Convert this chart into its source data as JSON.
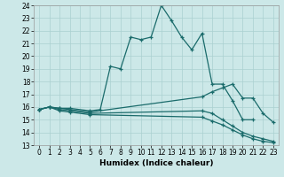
{
  "xlabel": "Humidex (Indice chaleur)",
  "xlim": [
    -0.5,
    23.5
  ],
  "ylim": [
    13,
    24
  ],
  "xticks": [
    0,
    1,
    2,
    3,
    4,
    5,
    6,
    7,
    8,
    9,
    10,
    11,
    12,
    13,
    14,
    15,
    16,
    17,
    18,
    19,
    20,
    21,
    22,
    23
  ],
  "yticks": [
    13,
    14,
    15,
    16,
    17,
    18,
    19,
    20,
    21,
    22,
    23,
    24
  ],
  "bg_color": "#cce8e8",
  "line_color": "#1a6b6b",
  "grid_color": "#aad0d0",
  "lines": [
    {
      "x": [
        0,
        1,
        2,
        3,
        5,
        6,
        7,
        8,
        9,
        10,
        11,
        12,
        13,
        14,
        15,
        16,
        17,
        18,
        19,
        20,
        21
      ],
      "y": [
        15.8,
        16.0,
        15.9,
        15.9,
        15.7,
        15.8,
        19.2,
        19.0,
        21.5,
        21.3,
        21.5,
        24.0,
        22.8,
        21.5,
        20.5,
        21.8,
        17.8,
        17.8,
        16.5,
        15.0,
        15.0
      ]
    },
    {
      "x": [
        0,
        1,
        2,
        3,
        5,
        16,
        17,
        18,
        19,
        20,
        21,
        22,
        23
      ],
      "y": [
        15.8,
        16.0,
        15.9,
        15.8,
        15.6,
        16.8,
        17.2,
        17.5,
        17.8,
        16.7,
        16.7,
        15.5,
        14.8
      ]
    },
    {
      "x": [
        0,
        1,
        2,
        3,
        5,
        16,
        17,
        18,
        19,
        20,
        21,
        22,
        23
      ],
      "y": [
        15.8,
        16.0,
        15.8,
        15.7,
        15.5,
        15.7,
        15.5,
        15.0,
        14.5,
        14.0,
        13.7,
        13.5,
        13.3
      ]
    },
    {
      "x": [
        0,
        1,
        2,
        3,
        5,
        16,
        17,
        18,
        19,
        20,
        21,
        22,
        23
      ],
      "y": [
        15.8,
        16.0,
        15.7,
        15.6,
        15.4,
        15.2,
        14.9,
        14.6,
        14.2,
        13.8,
        13.5,
        13.3,
        13.2
      ]
    }
  ]
}
